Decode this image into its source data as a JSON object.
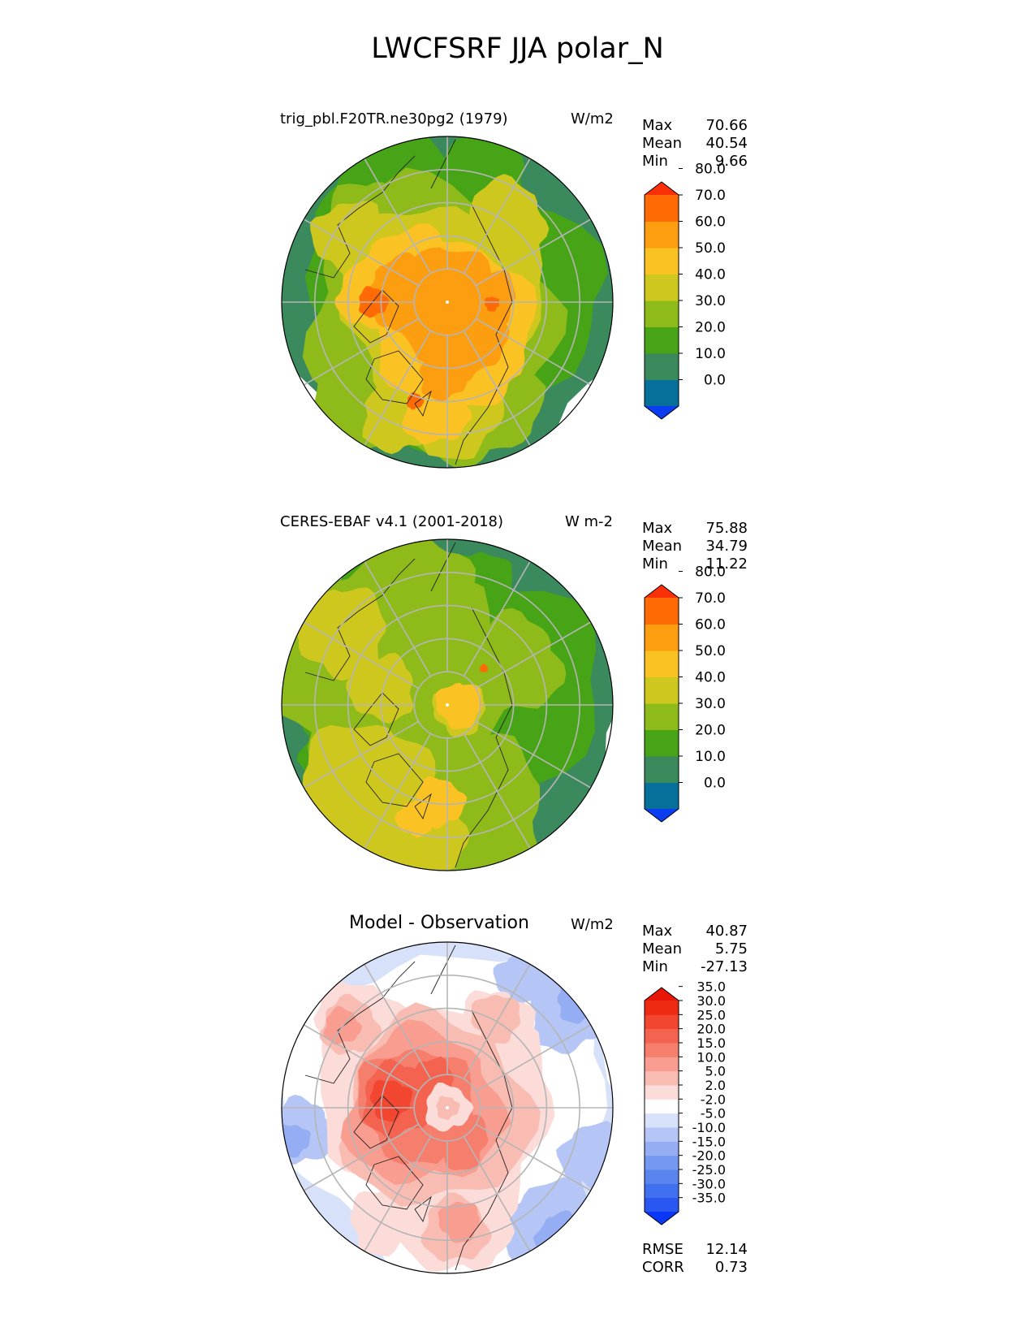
{
  "figure": {
    "title": "LWCFSRF JJA polar_N"
  },
  "chart_data": [
    {
      "type": "heatmap",
      "projection": "north-polar-stereographic",
      "title": "trig_pbl.F20TR.ne30pg2 (1979)",
      "units": "W/m2",
      "stats": [
        {
          "label": "Max",
          "value": "70.66"
        },
        {
          "label": "Mean",
          "value": "40.54"
        },
        {
          "label": "Min",
          "value": "9.66"
        }
      ],
      "colorbar": {
        "levels": [
          "0.0",
          "10.0",
          "20.0",
          "30.0",
          "40.0",
          "50.0",
          "60.0",
          "70.0",
          "80.0"
        ],
        "colors": [
          "#0a3cf0",
          "#06709a",
          "#3a8a5e",
          "#48a417",
          "#8fbb1a",
          "#cec81e",
          "#fbc223",
          "#fd9d10",
          "#fd6a06",
          "#fb3008"
        ],
        "extend": "both"
      },
      "grid": true
    },
    {
      "type": "heatmap",
      "projection": "north-polar-stereographic",
      "title": "CERES-EBAF v4.1 (2001-2018)",
      "units": "W m-2",
      "stats": [
        {
          "label": "Max",
          "value": "75.88"
        },
        {
          "label": "Mean",
          "value": "34.79"
        },
        {
          "label": "Min",
          "value": "11.22"
        }
      ],
      "colorbar": {
        "levels": [
          "0.0",
          "10.0",
          "20.0",
          "30.0",
          "40.0",
          "50.0",
          "60.0",
          "70.0",
          "80.0"
        ],
        "colors": [
          "#0a3cf0",
          "#06709a",
          "#3a8a5e",
          "#48a417",
          "#8fbb1a",
          "#cec81e",
          "#fbc223",
          "#fd9d10",
          "#fd6a06",
          "#fb3008"
        ],
        "extend": "both"
      },
      "grid": true
    },
    {
      "type": "heatmap",
      "projection": "north-polar-stereographic",
      "title": "Model - Observation",
      "units": "W/m2",
      "stats": [
        {
          "label": "Max",
          "value": "40.87"
        },
        {
          "label": "Mean",
          "value": "5.75"
        },
        {
          "label": "Min",
          "value": "-27.13"
        }
      ],
      "extra_stats": [
        {
          "label": "RMSE",
          "value": "12.14"
        },
        {
          "label": "CORR",
          "value": "0.73"
        }
      ],
      "colorbar": {
        "levels": [
          "-35.0",
          "-30.0",
          "-25.0",
          "-20.0",
          "-15.0",
          "-10.0",
          "-5.0",
          "-2.0",
          "2.0",
          "5.0",
          "10.0",
          "15.0",
          "20.0",
          "25.0",
          "30.0",
          "35.0"
        ],
        "colors": [
          "#0a36f5",
          "#2a56f2",
          "#4170ee",
          "#5a85ef",
          "#7598f2",
          "#94adf3",
          "#b5c6f6",
          "#d8e1fa",
          "#ffffff",
          "#fbdcd8",
          "#f9bcb2",
          "#f89d90",
          "#f67e6d",
          "#f46350",
          "#f24630",
          "#ee2a12",
          "#e81607"
        ],
        "extend": "both"
      },
      "grid": true
    }
  ]
}
